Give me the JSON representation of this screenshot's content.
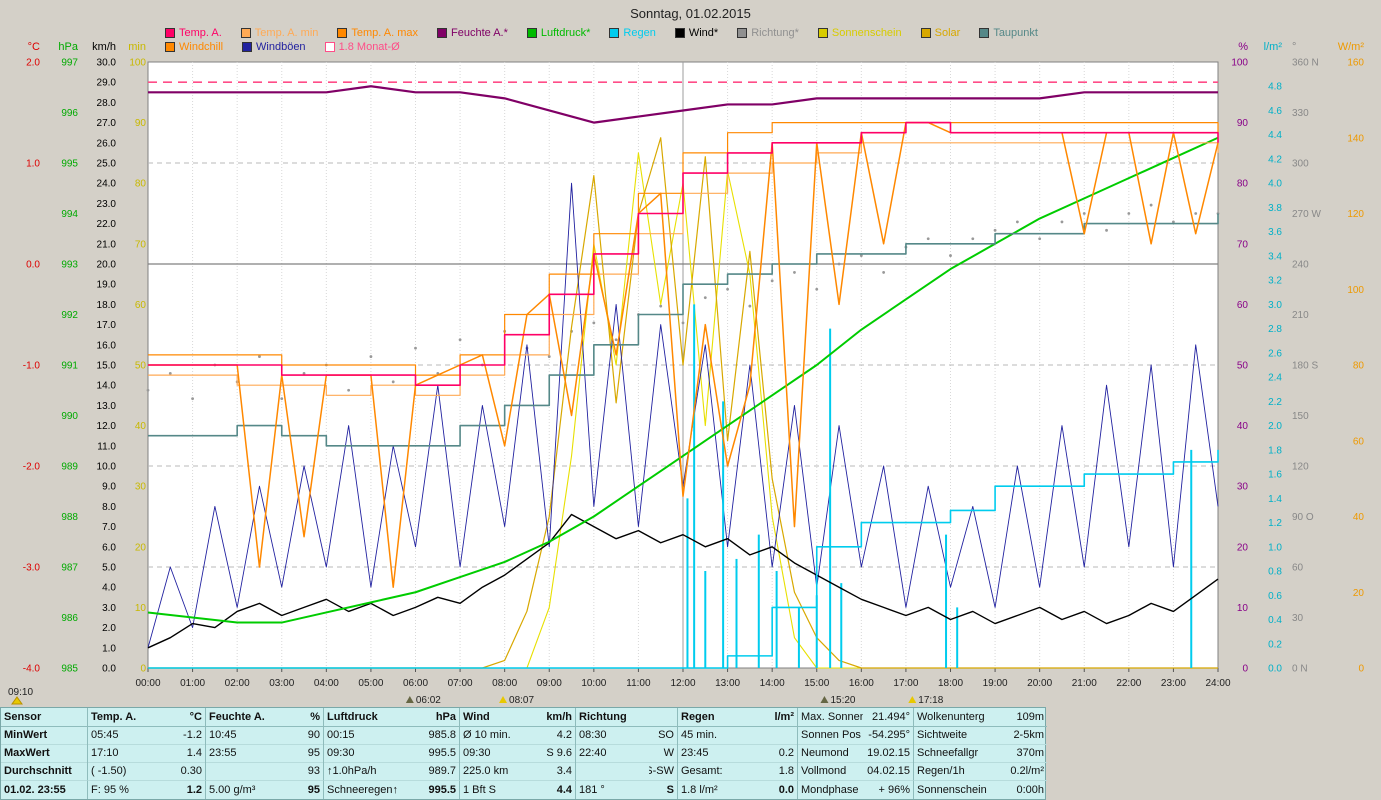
{
  "chart_data": {
    "type": "line",
    "title": "Sonntag, 01.02.2015",
    "x_unit": "hour",
    "x_range": [
      0,
      24
    ],
    "grid": true,
    "month_avg_line": {
      "label": "1.8 Monat-Ø",
      "color": "#ff4d88",
      "axis": "degC",
      "value": 1.8
    },
    "series": [
      {
        "name": "Richtung",
        "axis": "deg",
        "color": "#999999",
        "mode": "dots",
        "x_step": 0.5,
        "values": [
          165,
          175,
          160,
          180,
          170,
          185,
          160,
          175,
          180,
          165,
          185,
          170,
          190,
          175,
          195,
          180,
          200,
          190,
          185,
          200,
          205,
          195,
          210,
          215,
          205,
          220,
          225,
          215,
          230,
          235,
          225,
          240,
          245,
          235,
          250,
          255,
          245,
          255,
          260,
          265,
          255,
          265,
          270,
          260,
          270,
          275,
          265,
          270,
          270
        ]
      },
      {
        "name": "Sonnenschein",
        "axis": "min",
        "color": "#e8e000",
        "mode": "line",
        "width": 1.1,
        "x_step": 0.5,
        "values": [
          0,
          0,
          0,
          0,
          0,
          0,
          0,
          0,
          0,
          0,
          0,
          0,
          0,
          0,
          0,
          0,
          0,
          0,
          10,
          35,
          70,
          50,
          85,
          60,
          80,
          40,
          82,
          65,
          25,
          5,
          0,
          0,
          0,
          0,
          0,
          0,
          0,
          0,
          0,
          0,
          0,
          0,
          0,
          0,
          0,
          0,
          0,
          0,
          0
        ]
      },
      {
        "name": "Solar",
        "axis": "wm2",
        "color": "#d8a800",
        "mode": "line",
        "width": 1.2,
        "x_step": 0.5,
        "values": [
          0,
          0,
          0,
          0,
          0,
          0,
          0,
          0,
          0,
          0,
          0,
          0,
          0,
          0,
          0,
          0,
          2,
          15,
          40,
          90,
          130,
          70,
          120,
          140,
          80,
          135,
          60,
          110,
          50,
          20,
          8,
          2,
          0,
          0,
          0,
          0,
          0,
          0,
          0,
          0,
          0,
          0,
          0,
          0,
          0,
          0,
          0,
          0,
          0
        ]
      },
      {
        "name": "Windböen",
        "axis": "kmh",
        "color": "#2222a0",
        "mode": "line",
        "width": 0.9,
        "x_step": 0.5,
        "values": [
          1,
          5,
          2,
          8,
          3,
          9,
          4,
          10,
          5,
          12,
          4,
          11,
          6,
          14,
          5,
          13,
          7,
          16,
          6,
          24,
          8,
          18,
          7,
          17,
          9,
          16,
          6,
          15,
          5,
          13,
          4,
          12,
          5,
          10,
          3,
          9,
          4,
          8,
          3,
          10,
          4,
          12,
          5,
          14,
          6,
          15,
          5,
          16,
          8
        ]
      },
      {
        "name": "Regen Schauer",
        "axis": "lm2",
        "color": "#00ccee",
        "mode": "impulses",
        "points": [
          [
            12.1,
            1.4
          ],
          [
            12.25,
            3.0
          ],
          [
            12.5,
            0.8
          ],
          [
            12.9,
            2.2
          ],
          [
            13.2,
            0.9
          ],
          [
            13.7,
            1.1
          ],
          [
            14.1,
            0.8
          ],
          [
            14.6,
            0.5
          ],
          [
            15.0,
            0.6
          ],
          [
            15.3,
            2.8
          ],
          [
            15.55,
            0.7
          ],
          [
            17.9,
            1.1
          ],
          [
            18.15,
            0.5
          ],
          [
            23.4,
            1.8
          ]
        ]
      },
      {
        "name": "Wind",
        "axis": "kmh",
        "color": "#000000",
        "mode": "line",
        "width": 1.4,
        "x_step": 0.5,
        "values": [
          1.0,
          1.5,
          2.2,
          2.0,
          2.8,
          3.2,
          2.6,
          3.0,
          3.4,
          2.8,
          3.2,
          2.6,
          3.0,
          3.5,
          3.2,
          4.0,
          4.6,
          5.4,
          6.2,
          7.6,
          7.0,
          6.4,
          6.8,
          6.2,
          6.6,
          6.0,
          6.4,
          5.6,
          6.0,
          5.2,
          4.6,
          4.0,
          3.4,
          3.0,
          2.6,
          3.0,
          2.4,
          2.8,
          2.2,
          2.6,
          3.0,
          2.4,
          2.8,
          2.2,
          2.6,
          3.2,
          2.8,
          3.6,
          4.4
        ]
      },
      {
        "name": "Regen",
        "axis": "lm2",
        "color": "#00ccee",
        "mode": "step",
        "width": 1.6,
        "x_step": 1,
        "values": [
          0,
          0,
          0,
          0,
          0,
          0,
          0,
          0,
          0,
          0,
          0,
          0,
          0,
          0.1,
          0.5,
          1.0,
          1.2,
          1.2,
          1.3,
          1.5,
          1.5,
          1.6,
          1.6,
          1.7,
          1.8
        ]
      },
      {
        "name": "Luftdruck",
        "axis": "hPa",
        "color": "#00cc00",
        "mode": "line",
        "width": 2,
        "x_step": 1,
        "values": [
          986.1,
          986.0,
          985.9,
          985.9,
          986.1,
          986.3,
          986.5,
          986.8,
          987.1,
          987.5,
          988.0,
          988.6,
          989.2,
          989.8,
          990.4,
          991.0,
          991.7,
          992.3,
          992.9,
          993.4,
          993.9,
          994.3,
          994.7,
          995.1,
          995.5
        ]
      },
      {
        "name": "Taupunkt",
        "axis": "degC",
        "color": "#558888",
        "mode": "step",
        "width": 1.6,
        "x_step": 1,
        "values": [
          -1.7,
          -1.7,
          -1.6,
          -1.7,
          -1.8,
          -1.8,
          -1.8,
          -1.6,
          -1.4,
          -1.1,
          -0.8,
          -0.5,
          -0.2,
          -0.1,
          0.0,
          0.1,
          0.1,
          0.2,
          0.2,
          0.3,
          0.3,
          0.4,
          0.4,
          0.4,
          0.5
        ]
      },
      {
        "name": "Feuchte A.",
        "axis": "percent",
        "color": "#800066",
        "mode": "line",
        "width": 2.2,
        "x_step": 1,
        "values": [
          95,
          95,
          95,
          95,
          95,
          96,
          95,
          95,
          94,
          92,
          90,
          91,
          92,
          93,
          93,
          94,
          94,
          94,
          94,
          94,
          94,
          95,
          95,
          95,
          95
        ]
      },
      {
        "name": "Temp. A. min",
        "axis": "degC",
        "color": "#ffaa55",
        "mode": "step",
        "width": 1.2,
        "x_step": 1,
        "values": [
          -1.1,
          -1.1,
          -1.2,
          -1.2,
          -1.3,
          -1.2,
          -1.3,
          -1.1,
          -0.9,
          -0.5,
          -0.1,
          0.3,
          0.7,
          0.9,
          1.0,
          1.1,
          1.2,
          1.2,
          1.2,
          1.2,
          1.2,
          1.2,
          1.2,
          1.2,
          1.1
        ]
      },
      {
        "name": "Temp. A. max",
        "axis": "degC",
        "color": "#ff8800",
        "mode": "step",
        "width": 1.2,
        "x_step": 1,
        "values": [
          -0.9,
          -0.9,
          -0.9,
          -1.0,
          -1.0,
          -1.0,
          -1.1,
          -0.9,
          -0.5,
          -0.1,
          0.3,
          0.7,
          1.1,
          1.3,
          1.4,
          1.4,
          1.4,
          1.4,
          1.4,
          1.4,
          1.4,
          1.4,
          1.4,
          1.4,
          1.3
        ]
      },
      {
        "name": "Windchill",
        "axis": "degC",
        "color": "#ff8800",
        "mode": "line",
        "width": 1.5,
        "x_step": 0.5,
        "values": [
          -1.0,
          -1.0,
          -1.0,
          -1.0,
          -1.0,
          -3.0,
          -1.1,
          -2.7,
          -1.1,
          -1.1,
          -1.1,
          -3.2,
          -1.2,
          -1.1,
          -1.0,
          -0.9,
          -1.8,
          -0.5,
          -0.3,
          -1.5,
          0.1,
          -0.9,
          0.5,
          0.7,
          -2.3,
          -0.6,
          -2.0,
          -1.2,
          1.2,
          -2.6,
          1.2,
          -0.4,
          1.3,
          0.2,
          1.4,
          1.4,
          1.3,
          1.3,
          1.3,
          1.3,
          1.3,
          1.3,
          0.3,
          1.3,
          1.3,
          0.2,
          1.3,
          0.3,
          1.2
        ]
      },
      {
        "name": "Temp. A.",
        "axis": "degC",
        "color": "#ff0066",
        "mode": "step",
        "width": 1.6,
        "x_step": 1,
        "values": [
          -1.0,
          -1.0,
          -1.0,
          -1.1,
          -1.1,
          -1.1,
          -1.2,
          -1.0,
          -0.7,
          -0.3,
          0.1,
          0.5,
          0.9,
          1.1,
          1.2,
          1.2,
          1.3,
          1.4,
          1.3,
          1.3,
          1.3,
          1.3,
          1.3,
          1.3,
          1.2
        ]
      }
    ]
  },
  "legend": {
    "rows": [
      [
        {
          "label": "Temp. A.",
          "color": "#ff0066"
        },
        {
          "label": "Temp. A. min",
          "color": "#ffaa55"
        },
        {
          "label": "Temp. A. max",
          "color": "#ff8800"
        },
        {
          "label": "Feuchte A.*",
          "color": "#800066"
        },
        {
          "label": "Luftdruck*",
          "color": "#00bb00"
        },
        {
          "label": "Regen",
          "color": "#00ccee"
        },
        {
          "label": "Wind*",
          "color": "#000000"
        },
        {
          "label": "Richtung*",
          "color": "#909090"
        },
        {
          "label": "Sonnenschein",
          "color": "#d8cc00"
        },
        {
          "label": "Solar",
          "color": "#d8a800"
        },
        {
          "label": "Taupunkt",
          "color": "#558888"
        }
      ],
      [
        {
          "label": "Windchill",
          "color": "#ff8800"
        },
        {
          "label": "Windböen",
          "color": "#2222a0"
        },
        {
          "label": "1.8 Monat-Ø",
          "color": "#ff4d88",
          "outline": true
        }
      ]
    ]
  },
  "axes": {
    "left": [
      {
        "name": "°C",
        "scale": "degC",
        "color": "#dd0000",
        "labels": [
          "2.0",
          "1.0",
          "0.0",
          "-1.0",
          "-2.0",
          "-3.0",
          "-4.0"
        ]
      },
      {
        "name": "hPa",
        "scale": "hPa",
        "color": "#00aa00",
        "labels": [
          "997",
          "996",
          "995",
          "994",
          "993",
          "992",
          "991",
          "990",
          "989",
          "988",
          "987",
          "986",
          "985"
        ]
      },
      {
        "name": "km/h",
        "scale": "kmh",
        "color": "#000000",
        "labels": [
          "30.0",
          "29.0",
          "28.0",
          "27.0",
          "26.0",
          "25.0",
          "24.0",
          "23.0",
          "22.0",
          "21.0",
          "20.0",
          "19.0",
          "18.0",
          "17.0",
          "16.0",
          "15.0",
          "14.0",
          "13.0",
          "12.0",
          "11.0",
          "10.0",
          "9.0",
          "8.0",
          "7.0",
          "6.0",
          "5.0",
          "4.0",
          "3.0",
          "2.0",
          "1.0",
          "0.0"
        ]
      },
      {
        "name": "min",
        "scale": "min",
        "color": "#c8b800",
        "labels": [
          "100",
          "90",
          "80",
          "70",
          "60",
          "50",
          "40",
          "30",
          "20",
          "10",
          "0"
        ]
      }
    ],
    "right": [
      {
        "name": "%",
        "scale": "percent",
        "color": "#880088",
        "labels": [
          "100",
          "90",
          "80",
          "70",
          "60",
          "50",
          "40",
          "30",
          "20",
          "10",
          "0"
        ]
      },
      {
        "name": "l/m²",
        "scale": "lm2",
        "color": "#00b0c8",
        "labels": [
          "4.8",
          "4.6",
          "4.4",
          "4.2",
          "4.0",
          "3.8",
          "3.6",
          "3.4",
          "3.2",
          "3.0",
          "2.8",
          "2.6",
          "2.4",
          "2.2",
          "2.0",
          "1.8",
          "1.6",
          "1.4",
          "1.2",
          "1.0",
          "0.8",
          "0.6",
          "0.4",
          "0.2",
          "0.0"
        ]
      },
      {
        "name": "°",
        "scale": "deg",
        "color": "#888888",
        "labels": [
          "360 N",
          "330",
          "300",
          "270 W",
          "240",
          "210",
          "180 S",
          "150",
          "120",
          "90 O",
          "60",
          "30",
          "0 N"
        ]
      },
      {
        "name": "W/m²",
        "scale": "wm2",
        "color": "#ee9900",
        "labels": [
          "160",
          "140",
          "120",
          "100",
          "80",
          "60",
          "40",
          "20",
          "0"
        ]
      }
    ]
  },
  "x_axis": {
    "labels": [
      "00:00",
      "01:00",
      "02:00",
      "03:00",
      "04:00",
      "05:00",
      "06:00",
      "07:00",
      "08:00",
      "09:00",
      "10:00",
      "11:00",
      "12:00",
      "13:00",
      "14:00",
      "15:00",
      "16:00",
      "17:00",
      "18:00",
      "19:00",
      "20:00",
      "21:00",
      "22:00",
      "23:00",
      "24:00"
    ]
  },
  "x_markers": [
    {
      "time": "09:10",
      "x": null,
      "icon": "sun"
    },
    {
      "time": "06:02",
      "x": 6.03,
      "icon": "moon"
    },
    {
      "time": "08:07",
      "x": 8.12,
      "icon": "sun"
    },
    {
      "time": "15:20",
      "x": 15.33,
      "icon": "moon"
    },
    {
      "time": "17:18",
      "x": 17.3,
      "icon": "sun"
    }
  ],
  "table": {
    "row_labels": [
      "Sensor",
      "MinWert",
      "MaxWert",
      "Durchschnitt",
      "01.02. 23:55"
    ],
    "columns": [
      {
        "name": "Temp. A.",
        "unit": "°C",
        "rows": [
          [
            "05:45",
            "-1.2"
          ],
          [
            "17:10",
            "1.4"
          ],
          [
            "( -1.50)",
            "0.30"
          ],
          [
            "F: 95 %",
            "1.2"
          ]
        ]
      },
      {
        "name": "Feuchte A.",
        "unit": "%",
        "rows": [
          [
            "10:45",
            "90"
          ],
          [
            "23:55",
            "95"
          ],
          [
            "",
            "93"
          ],
          [
            "5.00 g/m³",
            "95"
          ]
        ]
      },
      {
        "name": "Luftdruck",
        "unit": "hPa",
        "rows": [
          [
            "00:15",
            "985.8"
          ],
          [
            "09:30",
            "995.5"
          ],
          [
            "↑1.0hPa/h",
            "989.7"
          ],
          [
            "Schneeregen↑",
            "995.5"
          ]
        ]
      },
      {
        "name": "Wind",
        "unit": "km/h",
        "rows": [
          [
            "Ø 10 min.",
            "4.2"
          ],
          [
            "09:30",
            "S 9.6"
          ],
          [
            "225.0 km",
            "3.4"
          ],
          [
            "1 Bft S",
            "4.4"
          ]
        ]
      },
      {
        "name": "Richtung",
        "unit": "",
        "rows": [
          [
            "08:30",
            "SO"
          ],
          [
            "22:40",
            "W"
          ],
          [
            "",
            "S-SW"
          ],
          [
            "181 °",
            "S"
          ]
        ]
      },
      {
        "name": "Regen",
        "unit": "l/m²",
        "rows": [
          [
            "45 min.",
            ""
          ],
          [
            "23:45",
            "0.2"
          ],
          [
            "Gesamt:",
            "1.8"
          ],
          [
            "1.8 l/m²",
            "0.0"
          ]
        ]
      }
    ],
    "extra_columns": [
      {
        "rows": [
          [
            "Max. Sonnen",
            "21.494°"
          ],
          [
            "Sonnen Pos",
            "-54.295°"
          ],
          [
            "Neumond",
            "19.02.15"
          ],
          [
            "Vollmond",
            "04.02.15"
          ],
          [
            "Mondphase",
            "+ 96%"
          ]
        ]
      },
      {
        "rows": [
          [
            "Wolkenunterg",
            "109m"
          ],
          [
            "Sichtweite",
            "2-5km"
          ],
          [
            "Schneefallgr",
            "370m"
          ],
          [
            "Regen/1h",
            "0.2l/m²"
          ],
          [
            "Sonnenschein",
            "0:00h"
          ]
        ]
      }
    ]
  }
}
